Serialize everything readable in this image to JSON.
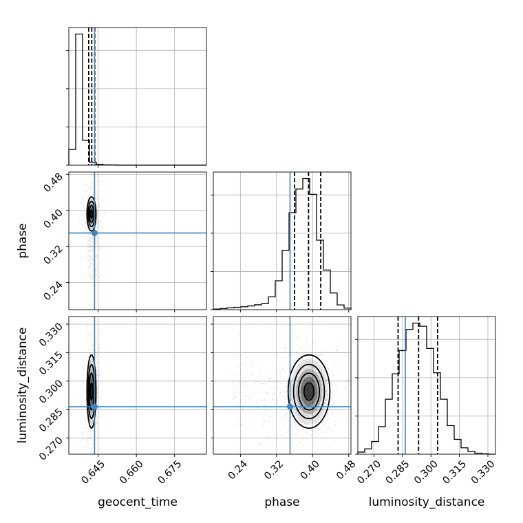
{
  "chart_data": {
    "type": "corner",
    "parameters": [
      "geocent_time",
      "phase",
      "luminosity_distance"
    ],
    "truths": {
      "geocent_time": 0.6436,
      "phase": 0.35,
      "luminosity_distance": 0.2865
    },
    "colors": {
      "truth": "#4682b4",
      "hist": "#000000",
      "grid": "#b0b0b0"
    },
    "ranges": {
      "geocent_time": [
        0.6335,
        0.6875
      ],
      "phase": [
        0.18,
        0.485
      ],
      "luminosity_distance": [
        0.2615,
        0.334
      ]
    },
    "ticks": {
      "geocent_time": [
        "0.645",
        "0.660",
        "0.675"
      ],
      "phase": [
        "0.24",
        "0.32",
        "0.40",
        "0.48"
      ],
      "luminosity_distance": [
        "0.270",
        "0.285",
        "0.300",
        "0.315",
        "0.330"
      ]
    },
    "histograms": {
      "geocent_time": {
        "edges": [
          0.6335,
          0.6362,
          0.6389,
          0.6416,
          0.6443,
          0.647,
          0.6497,
          0.6524,
          0.6551,
          0.6578,
          0.6605,
          0.6632,
          0.6659,
          0.6686,
          0.6713,
          0.674,
          0.6767,
          0.6794,
          0.6821,
          0.6848,
          0.6875
        ],
        "counts": [
          120,
          1000,
          190,
          22,
          6,
          2,
          1,
          0,
          0,
          0,
          0,
          0,
          0,
          0,
          0,
          0,
          0,
          0,
          0,
          0
        ],
        "quantiles": [
          0.6413,
          0.6425,
          0.6437
        ]
      },
      "phase": {
        "edges": [
          0.18,
          0.19525,
          0.2105,
          0.22575,
          0.241,
          0.25625,
          0.2715,
          0.28675,
          0.302,
          0.31725,
          0.3325,
          0.34775,
          0.363,
          0.37825,
          0.3935,
          0.40875,
          0.424,
          0.43925,
          0.4545,
          0.46975,
          0.485
        ],
        "counts": [
          4,
          8,
          13,
          17,
          21,
          27,
          35,
          43,
          93,
          208,
          426,
          698,
          868,
          943,
          830,
          500,
          285,
          120,
          34,
          11
        ],
        "quantiles": [
          0.36,
          0.391,
          0.418
        ]
      },
      "luminosity_distance": {
        "edges": [
          0.2615,
          0.265125,
          0.26875,
          0.272375,
          0.276,
          0.279625,
          0.28325,
          0.286875,
          0.2905,
          0.294125,
          0.29775,
          0.301375,
          0.305,
          0.308625,
          0.31225,
          0.315875,
          0.3195,
          0.323125,
          0.32675,
          0.330375,
          0.334
        ],
        "counts": [
          20,
          50,
          120,
          260,
          520,
          760,
          980,
          1180,
          1240,
          1210,
          1000,
          770,
          520,
          270,
          140,
          60,
          25,
          10,
          4,
          0
        ],
        "quantiles": [
          0.2827,
          0.2935,
          0.3035
        ]
      }
    },
    "joint": [
      {
        "x": "geocent_time",
        "y": "phase",
        "x_center": 0.6424,
        "y_center": 0.392,
        "x_spread": 0.00085,
        "y_spread": 0.018
      },
      {
        "x": "geocent_time",
        "y": "luminosity_distance",
        "x_center": 0.6424,
        "y_center": 0.2945,
        "x_spread": 0.00085,
        "y_spread": 0.0092
      },
      {
        "x": "phase",
        "y": "luminosity_distance",
        "x_center": 0.392,
        "y_center": 0.2945,
        "x_spread": 0.022,
        "y_spread": 0.0092
      }
    ]
  }
}
